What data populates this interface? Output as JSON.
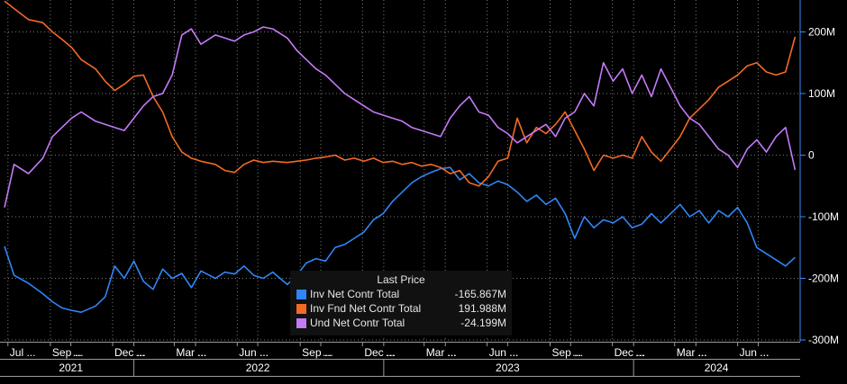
{
  "chart_data": {
    "type": "line",
    "ylim": [
      -300,
      250
    ],
    "y_ticks": [
      200,
      100,
      0,
      -100,
      -200,
      -300
    ],
    "y_tick_labels": [
      "200M",
      "100M",
      "0",
      "-100M",
      "-200M",
      "-300M"
    ],
    "x_range": [
      "2021-06-26",
      "2024-08-30"
    ],
    "month_ticks": [
      {
        "date": "2021-07-01",
        "label": "Jul ..."
      },
      {
        "date": "2021-09-01",
        "label": "Sep ..."
      },
      {
        "date": "2021-10-01",
        "label": "..."
      },
      {
        "date": "2021-12-01",
        "label": "Dec ..."
      },
      {
        "date": "2022-01-01",
        "label": "..."
      },
      {
        "date": "2022-03-01",
        "label": "Mar ..."
      },
      {
        "date": "2022-04-01",
        "label": "..."
      },
      {
        "date": "2022-06-01",
        "label": "Jun ..."
      },
      {
        "date": "2022-07-01",
        "label": "..."
      },
      {
        "date": "2022-09-01",
        "label": "Sep ..."
      },
      {
        "date": "2022-10-01",
        "label": "..."
      },
      {
        "date": "2022-12-01",
        "label": "Dec ..."
      },
      {
        "date": "2023-01-01",
        "label": "..."
      },
      {
        "date": "2023-03-01",
        "label": "Mar ..."
      },
      {
        "date": "2023-04-01",
        "label": "..."
      },
      {
        "date": "2023-06-01",
        "label": "Jun ..."
      },
      {
        "date": "2023-07-01",
        "label": "..."
      },
      {
        "date": "2023-09-01",
        "label": "Sep ..."
      },
      {
        "date": "2023-10-01",
        "label": "..."
      },
      {
        "date": "2023-12-01",
        "label": "Dec ..."
      },
      {
        "date": "2024-01-01",
        "label": "..."
      },
      {
        "date": "2024-03-01",
        "label": "Mar ..."
      },
      {
        "date": "2024-04-01",
        "label": "..."
      },
      {
        "date": "2024-06-01",
        "label": "Jun ..."
      },
      {
        "date": "2024-07-01",
        "label": "..."
      }
    ],
    "year_ticks": [
      {
        "date": "2021-10-01",
        "label": "2021"
      },
      {
        "date": "2022-07-01",
        "label": "2022"
      },
      {
        "date": "2023-07-01",
        "label": "2023"
      },
      {
        "date": "2024-05-01",
        "label": "2024"
      }
    ],
    "year_separators": [
      "2022-01-01",
      "2023-01-01",
      "2024-01-01"
    ],
    "legend_title": "Last Price",
    "series": [
      {
        "name": "Inv Net Contr Total",
        "color": "#2f86f6",
        "last_value": "-165.867M",
        "points": [
          [
            "2021-06-26",
            -148
          ],
          [
            "2021-07-10",
            -195
          ],
          [
            "2021-07-31",
            -208
          ],
          [
            "2021-08-21",
            -225
          ],
          [
            "2021-09-04",
            -238
          ],
          [
            "2021-09-18",
            -248
          ],
          [
            "2021-10-02",
            -252
          ],
          [
            "2021-10-16",
            -255
          ],
          [
            "2021-11-06",
            -245
          ],
          [
            "2021-11-20",
            -230
          ],
          [
            "2021-12-04",
            -180
          ],
          [
            "2021-12-18",
            -200
          ],
          [
            "2022-01-01",
            -172
          ],
          [
            "2022-01-15",
            -205
          ],
          [
            "2022-01-29",
            -218
          ],
          [
            "2022-02-12",
            -185
          ],
          [
            "2022-02-26",
            -200
          ],
          [
            "2022-03-12",
            -192
          ],
          [
            "2022-03-26",
            -215
          ],
          [
            "2022-04-09",
            -188
          ],
          [
            "2022-04-30",
            -200
          ],
          [
            "2022-05-14",
            -190
          ],
          [
            "2022-05-28",
            -193
          ],
          [
            "2022-06-11",
            -180
          ],
          [
            "2022-06-25",
            -195
          ],
          [
            "2022-07-09",
            -200
          ],
          [
            "2022-07-23",
            -190
          ],
          [
            "2022-08-13",
            -210
          ],
          [
            "2022-08-27",
            -195
          ],
          [
            "2022-09-10",
            -175
          ],
          [
            "2022-09-24",
            -168
          ],
          [
            "2022-10-08",
            -172
          ],
          [
            "2022-10-22",
            -150
          ],
          [
            "2022-11-05",
            -145
          ],
          [
            "2022-11-19",
            -135
          ],
          [
            "2022-12-03",
            -125
          ],
          [
            "2022-12-17",
            -105
          ],
          [
            "2022-12-31",
            -95
          ],
          [
            "2023-01-14",
            -75
          ],
          [
            "2023-01-28",
            -60
          ],
          [
            "2023-02-11",
            -45
          ],
          [
            "2023-02-25",
            -35
          ],
          [
            "2023-03-11",
            -28
          ],
          [
            "2023-03-25",
            -22
          ],
          [
            "2023-04-08",
            -20
          ],
          [
            "2023-04-22",
            -40
          ],
          [
            "2023-05-06",
            -30
          ],
          [
            "2023-05-20",
            -45
          ],
          [
            "2023-06-03",
            -50
          ],
          [
            "2023-06-17",
            -42
          ],
          [
            "2023-07-01",
            -48
          ],
          [
            "2023-07-15",
            -60
          ],
          [
            "2023-07-29",
            -75
          ],
          [
            "2023-08-12",
            -65
          ],
          [
            "2023-08-26",
            -80
          ],
          [
            "2023-09-09",
            -70
          ],
          [
            "2023-09-23",
            -95
          ],
          [
            "2023-10-07",
            -135
          ],
          [
            "2023-10-21",
            -100
          ],
          [
            "2023-11-04",
            -118
          ],
          [
            "2023-11-18",
            -105
          ],
          [
            "2023-12-02",
            -110
          ],
          [
            "2023-12-16",
            -100
          ],
          [
            "2023-12-30",
            -118
          ],
          [
            "2024-01-13",
            -112
          ],
          [
            "2024-01-27",
            -95
          ],
          [
            "2024-02-10",
            -110
          ],
          [
            "2024-02-24",
            -95
          ],
          [
            "2024-03-09",
            -80
          ],
          [
            "2024-03-23",
            -100
          ],
          [
            "2024-04-06",
            -90
          ],
          [
            "2024-04-20",
            -110
          ],
          [
            "2024-05-04",
            -90
          ],
          [
            "2024-05-18",
            -100
          ],
          [
            "2024-06-01",
            -85
          ],
          [
            "2024-06-15",
            -110
          ],
          [
            "2024-06-29",
            -150
          ],
          [
            "2024-07-13",
            -160
          ],
          [
            "2024-07-27",
            -170
          ],
          [
            "2024-08-10",
            -180
          ],
          [
            "2024-08-24",
            -166
          ]
        ]
      },
      {
        "name": "Inv Fnd Net Contr Total",
        "color": "#f26a24",
        "last_value": "191.988M",
        "points": [
          [
            "2021-06-26",
            250
          ],
          [
            "2021-07-10",
            238
          ],
          [
            "2021-07-31",
            220
          ],
          [
            "2021-08-21",
            215
          ],
          [
            "2021-09-04",
            200
          ],
          [
            "2021-09-18",
            188
          ],
          [
            "2021-10-02",
            175
          ],
          [
            "2021-10-16",
            155
          ],
          [
            "2021-11-06",
            140
          ],
          [
            "2021-11-20",
            120
          ],
          [
            "2021-12-04",
            105
          ],
          [
            "2021-12-18",
            115
          ],
          [
            "2022-01-01",
            128
          ],
          [
            "2022-01-15",
            130
          ],
          [
            "2022-01-29",
            95
          ],
          [
            "2022-02-12",
            70
          ],
          [
            "2022-02-26",
            30
          ],
          [
            "2022-03-12",
            5
          ],
          [
            "2022-03-26",
            -5
          ],
          [
            "2022-04-09",
            -10
          ],
          [
            "2022-04-30",
            -15
          ],
          [
            "2022-05-14",
            -25
          ],
          [
            "2022-05-28",
            -28
          ],
          [
            "2022-06-11",
            -15
          ],
          [
            "2022-06-25",
            -8
          ],
          [
            "2022-07-09",
            -12
          ],
          [
            "2022-07-23",
            -10
          ],
          [
            "2022-08-13",
            -12
          ],
          [
            "2022-08-27",
            -10
          ],
          [
            "2022-09-10",
            -8
          ],
          [
            "2022-09-24",
            -5
          ],
          [
            "2022-10-08",
            -3
          ],
          [
            "2022-10-22",
            0
          ],
          [
            "2022-11-05",
            -8
          ],
          [
            "2022-11-19",
            -5
          ],
          [
            "2022-12-03",
            -10
          ],
          [
            "2022-12-17",
            -5
          ],
          [
            "2022-12-31",
            -12
          ],
          [
            "2023-01-14",
            -10
          ],
          [
            "2023-01-28",
            -15
          ],
          [
            "2023-02-11",
            -12
          ],
          [
            "2023-02-25",
            -18
          ],
          [
            "2023-03-11",
            -15
          ],
          [
            "2023-03-25",
            -20
          ],
          [
            "2023-04-08",
            -30
          ],
          [
            "2023-04-22",
            -25
          ],
          [
            "2023-05-06",
            -45
          ],
          [
            "2023-05-20",
            -50
          ],
          [
            "2023-06-03",
            -35
          ],
          [
            "2023-06-17",
            -10
          ],
          [
            "2023-07-01",
            -5
          ],
          [
            "2023-07-15",
            60
          ],
          [
            "2023-07-29",
            20
          ],
          [
            "2023-08-12",
            45
          ],
          [
            "2023-08-26",
            35
          ],
          [
            "2023-09-09",
            50
          ],
          [
            "2023-09-23",
            70
          ],
          [
            "2023-10-07",
            40
          ],
          [
            "2023-10-21",
            10
          ],
          [
            "2023-11-04",
            -25
          ],
          [
            "2023-11-18",
            0
          ],
          [
            "2023-12-02",
            -5
          ],
          [
            "2023-12-16",
            0
          ],
          [
            "2023-12-30",
            -5
          ],
          [
            "2024-01-13",
            30
          ],
          [
            "2024-01-27",
            5
          ],
          [
            "2024-02-10",
            -10
          ],
          [
            "2024-02-24",
            10
          ],
          [
            "2024-03-09",
            30
          ],
          [
            "2024-03-23",
            60
          ],
          [
            "2024-04-06",
            75
          ],
          [
            "2024-04-20",
            90
          ],
          [
            "2024-05-04",
            110
          ],
          [
            "2024-05-18",
            120
          ],
          [
            "2024-06-01",
            130
          ],
          [
            "2024-06-15",
            145
          ],
          [
            "2024-06-29",
            150
          ],
          [
            "2024-07-13",
            135
          ],
          [
            "2024-07-27",
            130
          ],
          [
            "2024-08-10",
            135
          ],
          [
            "2024-08-24",
            192
          ]
        ]
      },
      {
        "name": "Und Net Contr Total",
        "color": "#c37af7",
        "last_value": "-24.199M",
        "points": [
          [
            "2021-06-26",
            -85
          ],
          [
            "2021-07-10",
            -15
          ],
          [
            "2021-07-31",
            -30
          ],
          [
            "2021-08-21",
            -5
          ],
          [
            "2021-09-04",
            30
          ],
          [
            "2021-09-18",
            45
          ],
          [
            "2021-10-02",
            60
          ],
          [
            "2021-10-16",
            70
          ],
          [
            "2021-11-06",
            55
          ],
          [
            "2021-11-20",
            50
          ],
          [
            "2021-12-04",
            45
          ],
          [
            "2021-12-18",
            40
          ],
          [
            "2022-01-01",
            60
          ],
          [
            "2022-01-15",
            80
          ],
          [
            "2022-01-29",
            95
          ],
          [
            "2022-02-12",
            100
          ],
          [
            "2022-02-26",
            130
          ],
          [
            "2022-03-12",
            195
          ],
          [
            "2022-03-26",
            205
          ],
          [
            "2022-04-09",
            180
          ],
          [
            "2022-04-30",
            195
          ],
          [
            "2022-05-14",
            190
          ],
          [
            "2022-05-28",
            185
          ],
          [
            "2022-06-11",
            195
          ],
          [
            "2022-06-25",
            200
          ],
          [
            "2022-07-09",
            208
          ],
          [
            "2022-07-23",
            205
          ],
          [
            "2022-08-13",
            190
          ],
          [
            "2022-08-27",
            170
          ],
          [
            "2022-09-10",
            155
          ],
          [
            "2022-09-24",
            140
          ],
          [
            "2022-10-08",
            130
          ],
          [
            "2022-10-22",
            115
          ],
          [
            "2022-11-05",
            100
          ],
          [
            "2022-11-19",
            90
          ],
          [
            "2022-12-03",
            80
          ],
          [
            "2022-12-17",
            70
          ],
          [
            "2022-12-31",
            65
          ],
          [
            "2023-01-14",
            60
          ],
          [
            "2023-01-28",
            55
          ],
          [
            "2023-02-11",
            45
          ],
          [
            "2023-02-25",
            40
          ],
          [
            "2023-03-11",
            35
          ],
          [
            "2023-03-25",
            30
          ],
          [
            "2023-04-08",
            60
          ],
          [
            "2023-04-22",
            80
          ],
          [
            "2023-05-06",
            95
          ],
          [
            "2023-05-20",
            70
          ],
          [
            "2023-06-03",
            65
          ],
          [
            "2023-06-17",
            45
          ],
          [
            "2023-07-01",
            35
          ],
          [
            "2023-07-15",
            20
          ],
          [
            "2023-07-29",
            30
          ],
          [
            "2023-08-12",
            40
          ],
          [
            "2023-08-26",
            50
          ],
          [
            "2023-09-09",
            30
          ],
          [
            "2023-09-23",
            60
          ],
          [
            "2023-10-07",
            70
          ],
          [
            "2023-10-21",
            100
          ],
          [
            "2023-11-04",
            80
          ],
          [
            "2023-11-18",
            150
          ],
          [
            "2023-12-02",
            120
          ],
          [
            "2023-12-16",
            140
          ],
          [
            "2023-12-30",
            100
          ],
          [
            "2024-01-13",
            130
          ],
          [
            "2024-01-27",
            95
          ],
          [
            "2024-02-10",
            140
          ],
          [
            "2024-02-24",
            110
          ],
          [
            "2024-03-09",
            80
          ],
          [
            "2024-03-23",
            60
          ],
          [
            "2024-04-06",
            50
          ],
          [
            "2024-04-20",
            30
          ],
          [
            "2024-05-04",
            10
          ],
          [
            "2024-05-18",
            0
          ],
          [
            "2024-06-01",
            -20
          ],
          [
            "2024-06-15",
            10
          ],
          [
            "2024-06-29",
            25
          ],
          [
            "2024-07-13",
            5
          ],
          [
            "2024-07-27",
            30
          ],
          [
            "2024-08-10",
            45
          ],
          [
            "2024-08-24",
            -24
          ]
        ]
      }
    ]
  }
}
